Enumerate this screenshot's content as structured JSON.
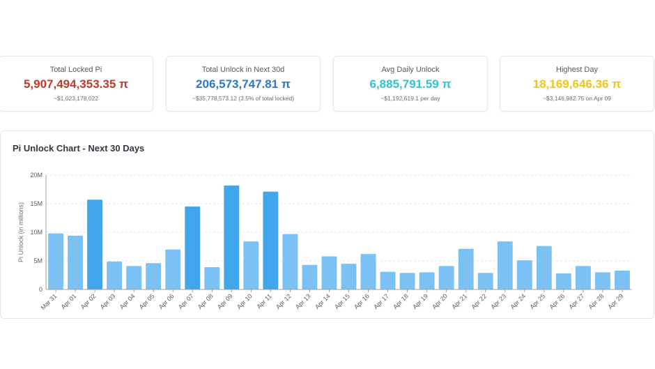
{
  "cards": [
    {
      "label": "Total Locked Pi",
      "value": "5,907,494,353.35 π",
      "sub": "~$1,023,178,022",
      "color": "#c0392b"
    },
    {
      "label": "Total Unlock in Next 30d",
      "value": "206,573,747.81 π",
      "sub": "~$35,778,573.12 (3.5% of total locked)",
      "color": "#2b78c8"
    },
    {
      "label": "Avg Daily Unlock",
      "value": "6,885,791.59 π",
      "sub": "~$1,192,619.1 per day",
      "color": "#2fc3d8"
    },
    {
      "label": "Highest Day",
      "value": "18,169,646.36 π",
      "sub": "~$3,146,982.75 on Apr 09",
      "color": "#f0c419"
    }
  ],
  "chart_panel": {
    "title": "Pi Unlock Chart - Next 30 Days"
  },
  "chart_data": {
    "type": "bar",
    "title": "Pi Unlock Chart - Next 30 Days",
    "xlabel": "",
    "ylabel": "Pi Unlock (in millions)",
    "ylim": [
      0,
      20
    ],
    "yticks": [
      0,
      5,
      10,
      15,
      20
    ],
    "ytick_labels": [
      "0",
      "5M",
      "10M",
      "15M",
      "20M"
    ],
    "grid": true,
    "highlight_threshold": 14,
    "colors": {
      "normal": "#7cc1f4",
      "highlight": "#41a6ec"
    },
    "categories": [
      "Mar 31",
      "Apr 01",
      "Apr 02",
      "Apr 03",
      "Apr 04",
      "Apr 05",
      "Apr 06",
      "Apr 07",
      "Apr 08",
      "Apr 09",
      "Apr 10",
      "Apr 11",
      "Apr 12",
      "Apr 13",
      "Apr 14",
      "Apr 15",
      "Apr 16",
      "Apr 17",
      "Apr 18",
      "Apr 19",
      "Apr 20",
      "Apr 21",
      "Apr 22",
      "Apr 23",
      "Apr 24",
      "Apr 25",
      "Apr 26",
      "Apr 27",
      "Apr 28",
      "Apr 29"
    ],
    "values": [
      9.8,
      9.4,
      15.7,
      4.9,
      4.1,
      4.6,
      7.0,
      14.5,
      3.9,
      18.17,
      8.4,
      17.1,
      9.7,
      4.3,
      5.8,
      4.5,
      6.2,
      3.1,
      2.9,
      3.0,
      4.1,
      7.1,
      2.9,
      8.4,
      5.1,
      7.6,
      2.8,
      4.1,
      3.0,
      3.3
    ]
  }
}
